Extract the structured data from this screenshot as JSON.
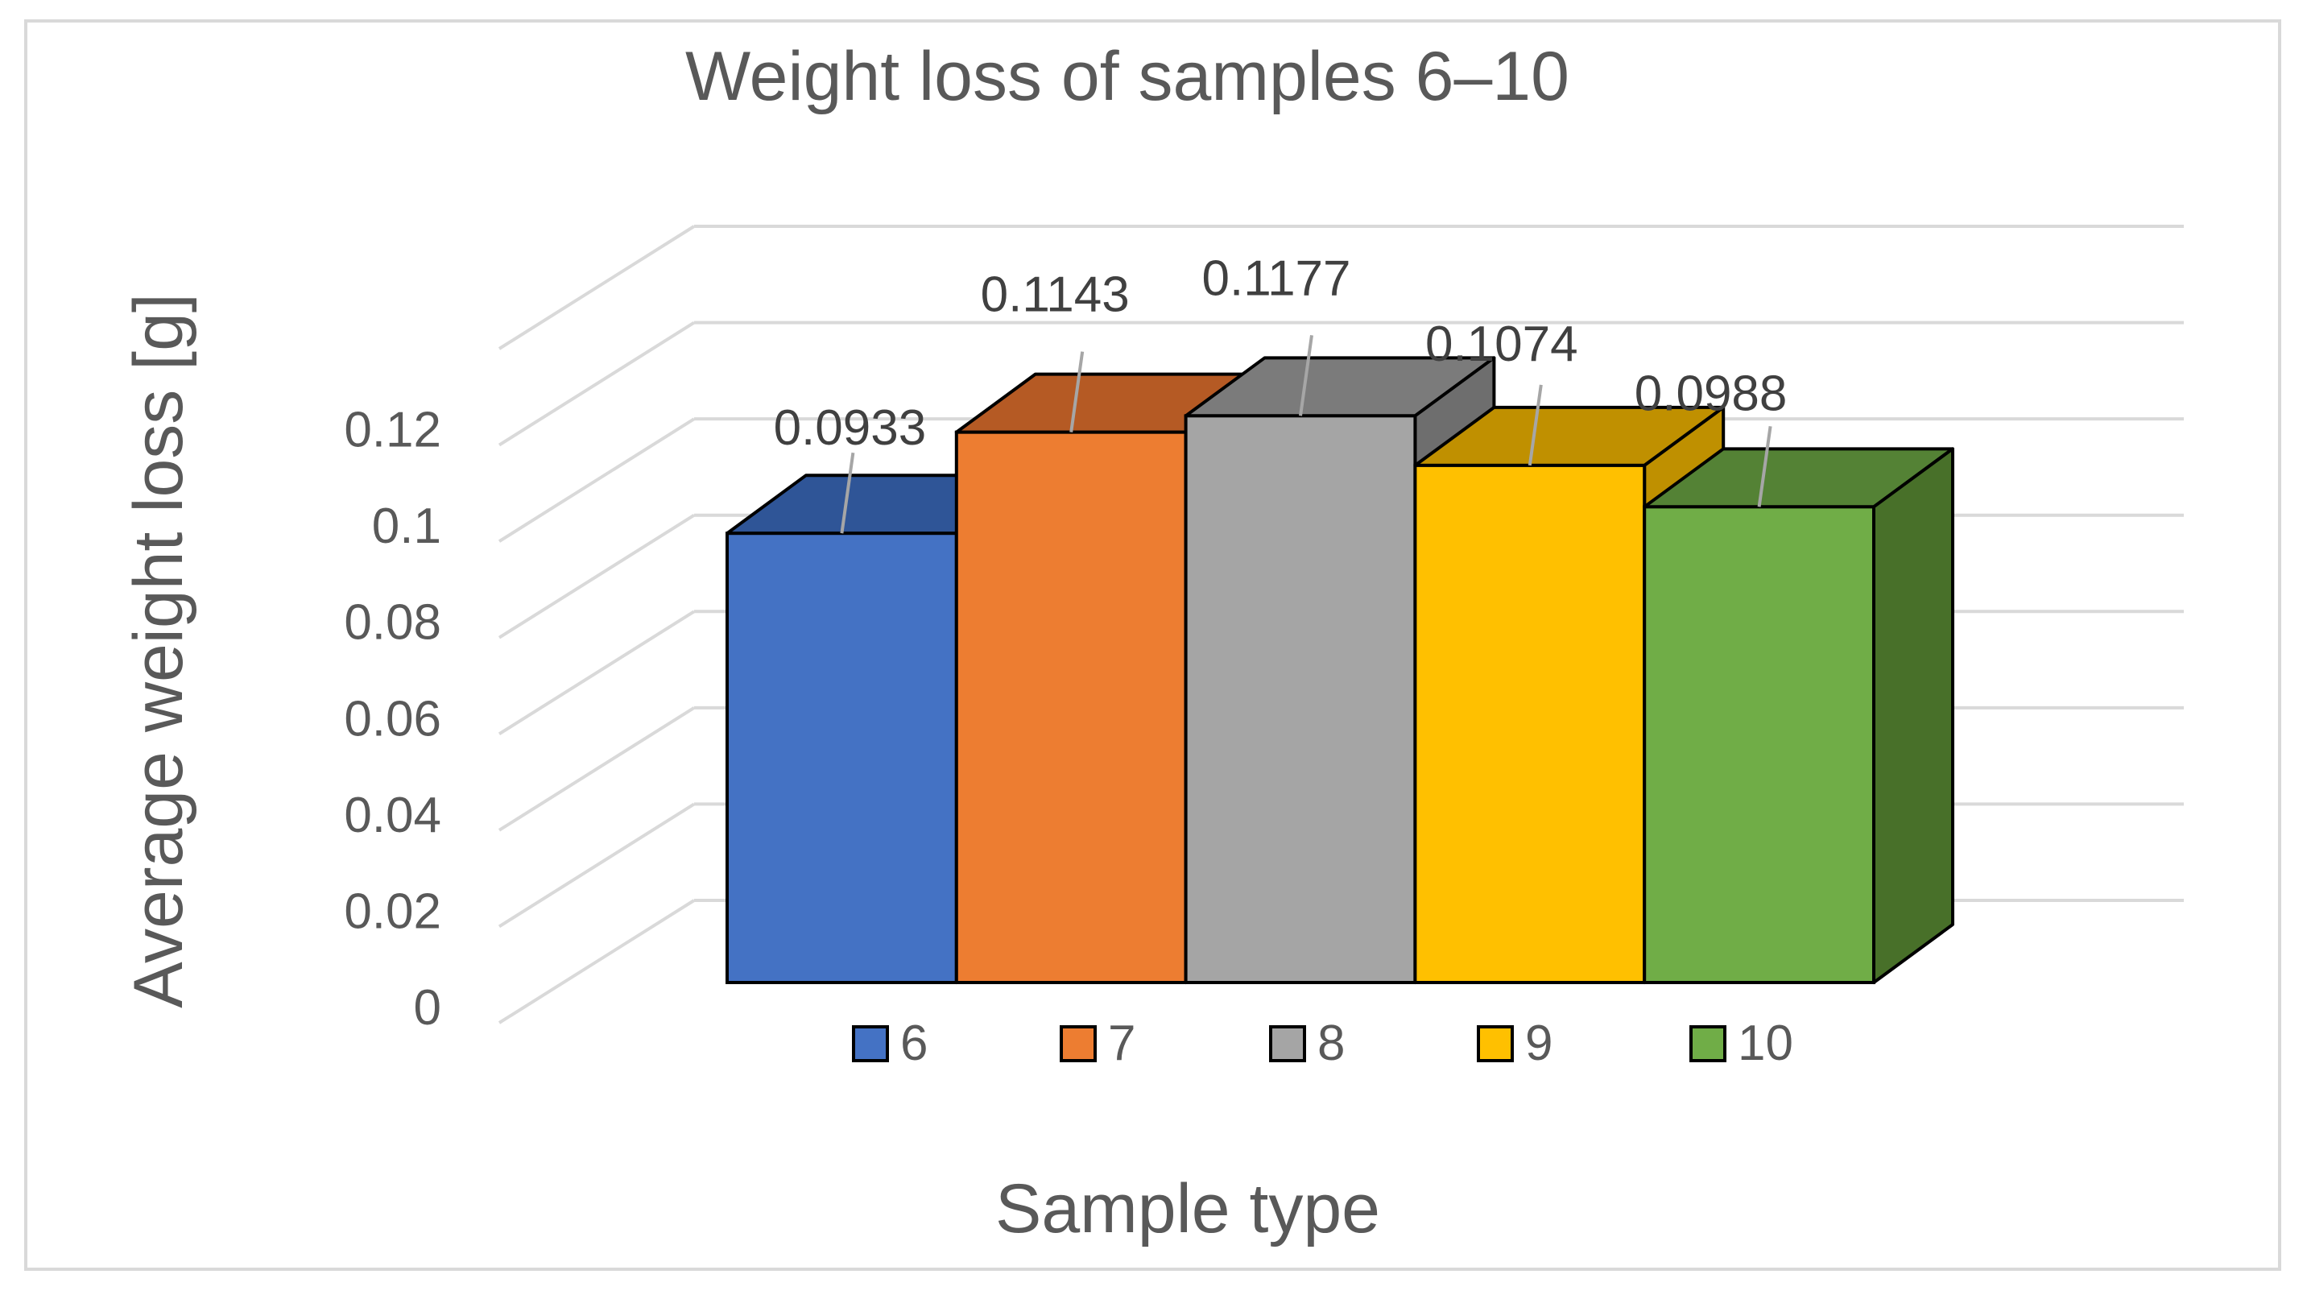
{
  "chart_data": {
    "type": "bar",
    "title": "Weight loss of samples 6–10",
    "xlabel": "Sample type",
    "ylabel": "Average weight loss [g]",
    "ylim": [
      0,
      0.14
    ],
    "yticks": [
      0,
      0.02,
      0.04,
      0.06,
      0.08,
      0.1,
      0.12
    ],
    "ytick_labels": [
      "0",
      "0.02",
      "0.04",
      "0.06",
      "0.08",
      "0.1",
      "0.12"
    ],
    "grid": true,
    "legend_position": "bottom",
    "series": [
      {
        "name": "6",
        "value": 0.0933,
        "label": "0.0933",
        "color": "#4472c4",
        "top_color": "#2f5597",
        "side_color": "#2f5597"
      },
      {
        "name": "7",
        "value": 0.1143,
        "label": "0.1143",
        "color": "#ed7d31",
        "top_color": "#b55a24",
        "side_color": "#b55a24"
      },
      {
        "name": "8",
        "value": 0.1177,
        "label": "0.1177",
        "color": "#a5a5a5",
        "top_color": "#7b7b7b",
        "side_color": "#6e6e6e"
      },
      {
        "name": "9",
        "value": 0.1074,
        "label": "0.1074",
        "color": "#ffc000",
        "top_color": "#c09000",
        "side_color": "#bf9000"
      },
      {
        "name": "10",
        "value": 0.0988,
        "label": "0.0988",
        "color": "#70ad47",
        "top_color": "#548235",
        "side_color": "#487029"
      }
    ]
  }
}
